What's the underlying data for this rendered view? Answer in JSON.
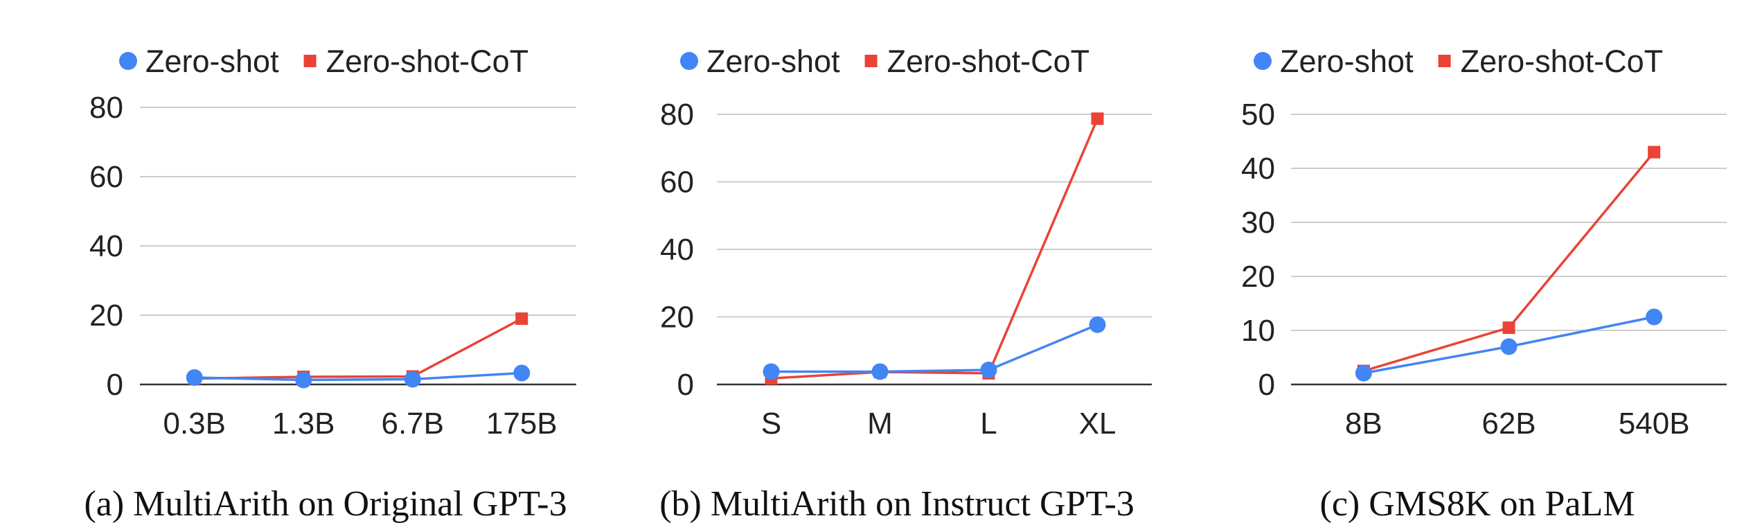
{
  "chart_data": [
    {
      "type": "line",
      "title": "",
      "caption": "(a) MultiArith on Original GPT-3",
      "xlabel": "",
      "ylabel": "",
      "categories": [
        "0.3B",
        "1.3B",
        "6.7B",
        "175B"
      ],
      "ylim": [
        0,
        80
      ],
      "yticks": [
        0,
        20,
        40,
        60,
        80
      ],
      "grid": true,
      "legend": "top",
      "series": [
        {
          "name": "Zero-shot",
          "values": [
            2.0,
            1.3,
            1.5,
            3.3
          ],
          "color": "#4285f4",
          "marker": "circle"
        },
        {
          "name": "Zero-shot-CoT",
          "values": [
            1.7,
            2.2,
            2.3,
            19.0
          ],
          "color": "#ea4335",
          "marker": "square"
        }
      ]
    },
    {
      "type": "line",
      "title": "",
      "caption": "(b) MultiArith on Instruct GPT-3",
      "xlabel": "",
      "ylabel": "",
      "categories": [
        "S",
        "M",
        "L",
        "XL"
      ],
      "ylim": [
        0,
        80
      ],
      "yticks": [
        0,
        20,
        40,
        60,
        80
      ],
      "grid": true,
      "legend": "top",
      "series": [
        {
          "name": "Zero-shot",
          "values": [
            3.8,
            3.8,
            4.3,
            17.7
          ],
          "color": "#4285f4",
          "marker": "circle"
        },
        {
          "name": "Zero-shot-CoT",
          "values": [
            1.8,
            3.7,
            3.3,
            78.7
          ],
          "color": "#ea4335",
          "marker": "square"
        }
      ]
    },
    {
      "type": "line",
      "title": "",
      "caption": "(c) GMS8K on PaLM",
      "xlabel": "",
      "ylabel": "",
      "categories": [
        "8B",
        "62B",
        "540B"
      ],
      "ylim": [
        0,
        50
      ],
      "yticks": [
        0,
        10,
        20,
        30,
        40,
        50
      ],
      "grid": true,
      "legend": "top",
      "series": [
        {
          "name": "Zero-shot",
          "values": [
            2.1,
            7.0,
            12.5
          ],
          "color": "#4285f4",
          "marker": "circle"
        },
        {
          "name": "Zero-shot-CoT",
          "values": [
            2.5,
            10.5,
            43.0
          ],
          "color": "#ea4335",
          "marker": "square"
        }
      ]
    }
  ]
}
